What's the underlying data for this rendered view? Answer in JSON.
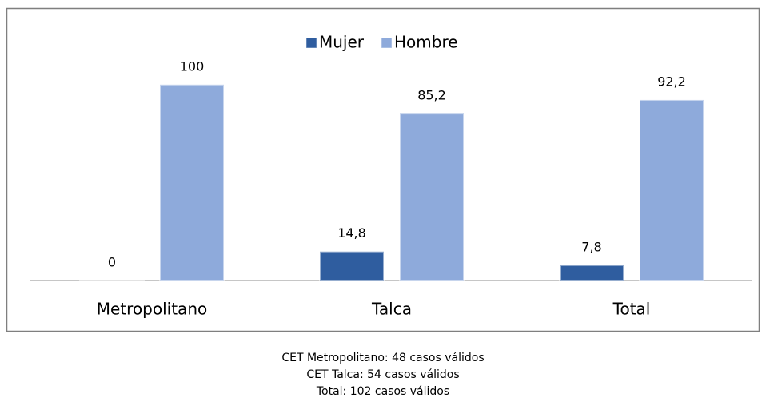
{
  "chart_data": {
    "type": "bar",
    "categories": [
      "Metropolitano",
      "Talca",
      "Total"
    ],
    "series": [
      {
        "name": "Mujer",
        "color": "#2f5d9f",
        "values": [
          0,
          14.8,
          7.8
        ],
        "value_labels": [
          "0",
          "14,8",
          "7,8"
        ]
      },
      {
        "name": "Hombre",
        "color": "#8eaadb",
        "values": [
          100,
          85.2,
          92.2
        ],
        "value_labels": [
          "100",
          "85,2",
          "92,2"
        ]
      }
    ],
    "ylim": [
      0,
      135
    ],
    "legend": "top",
    "notes": [
      "CET Metropolitano: 48 casos válidos",
      "CET Talca: 54 casos válidos",
      "Total: 102 casos válidos"
    ]
  }
}
